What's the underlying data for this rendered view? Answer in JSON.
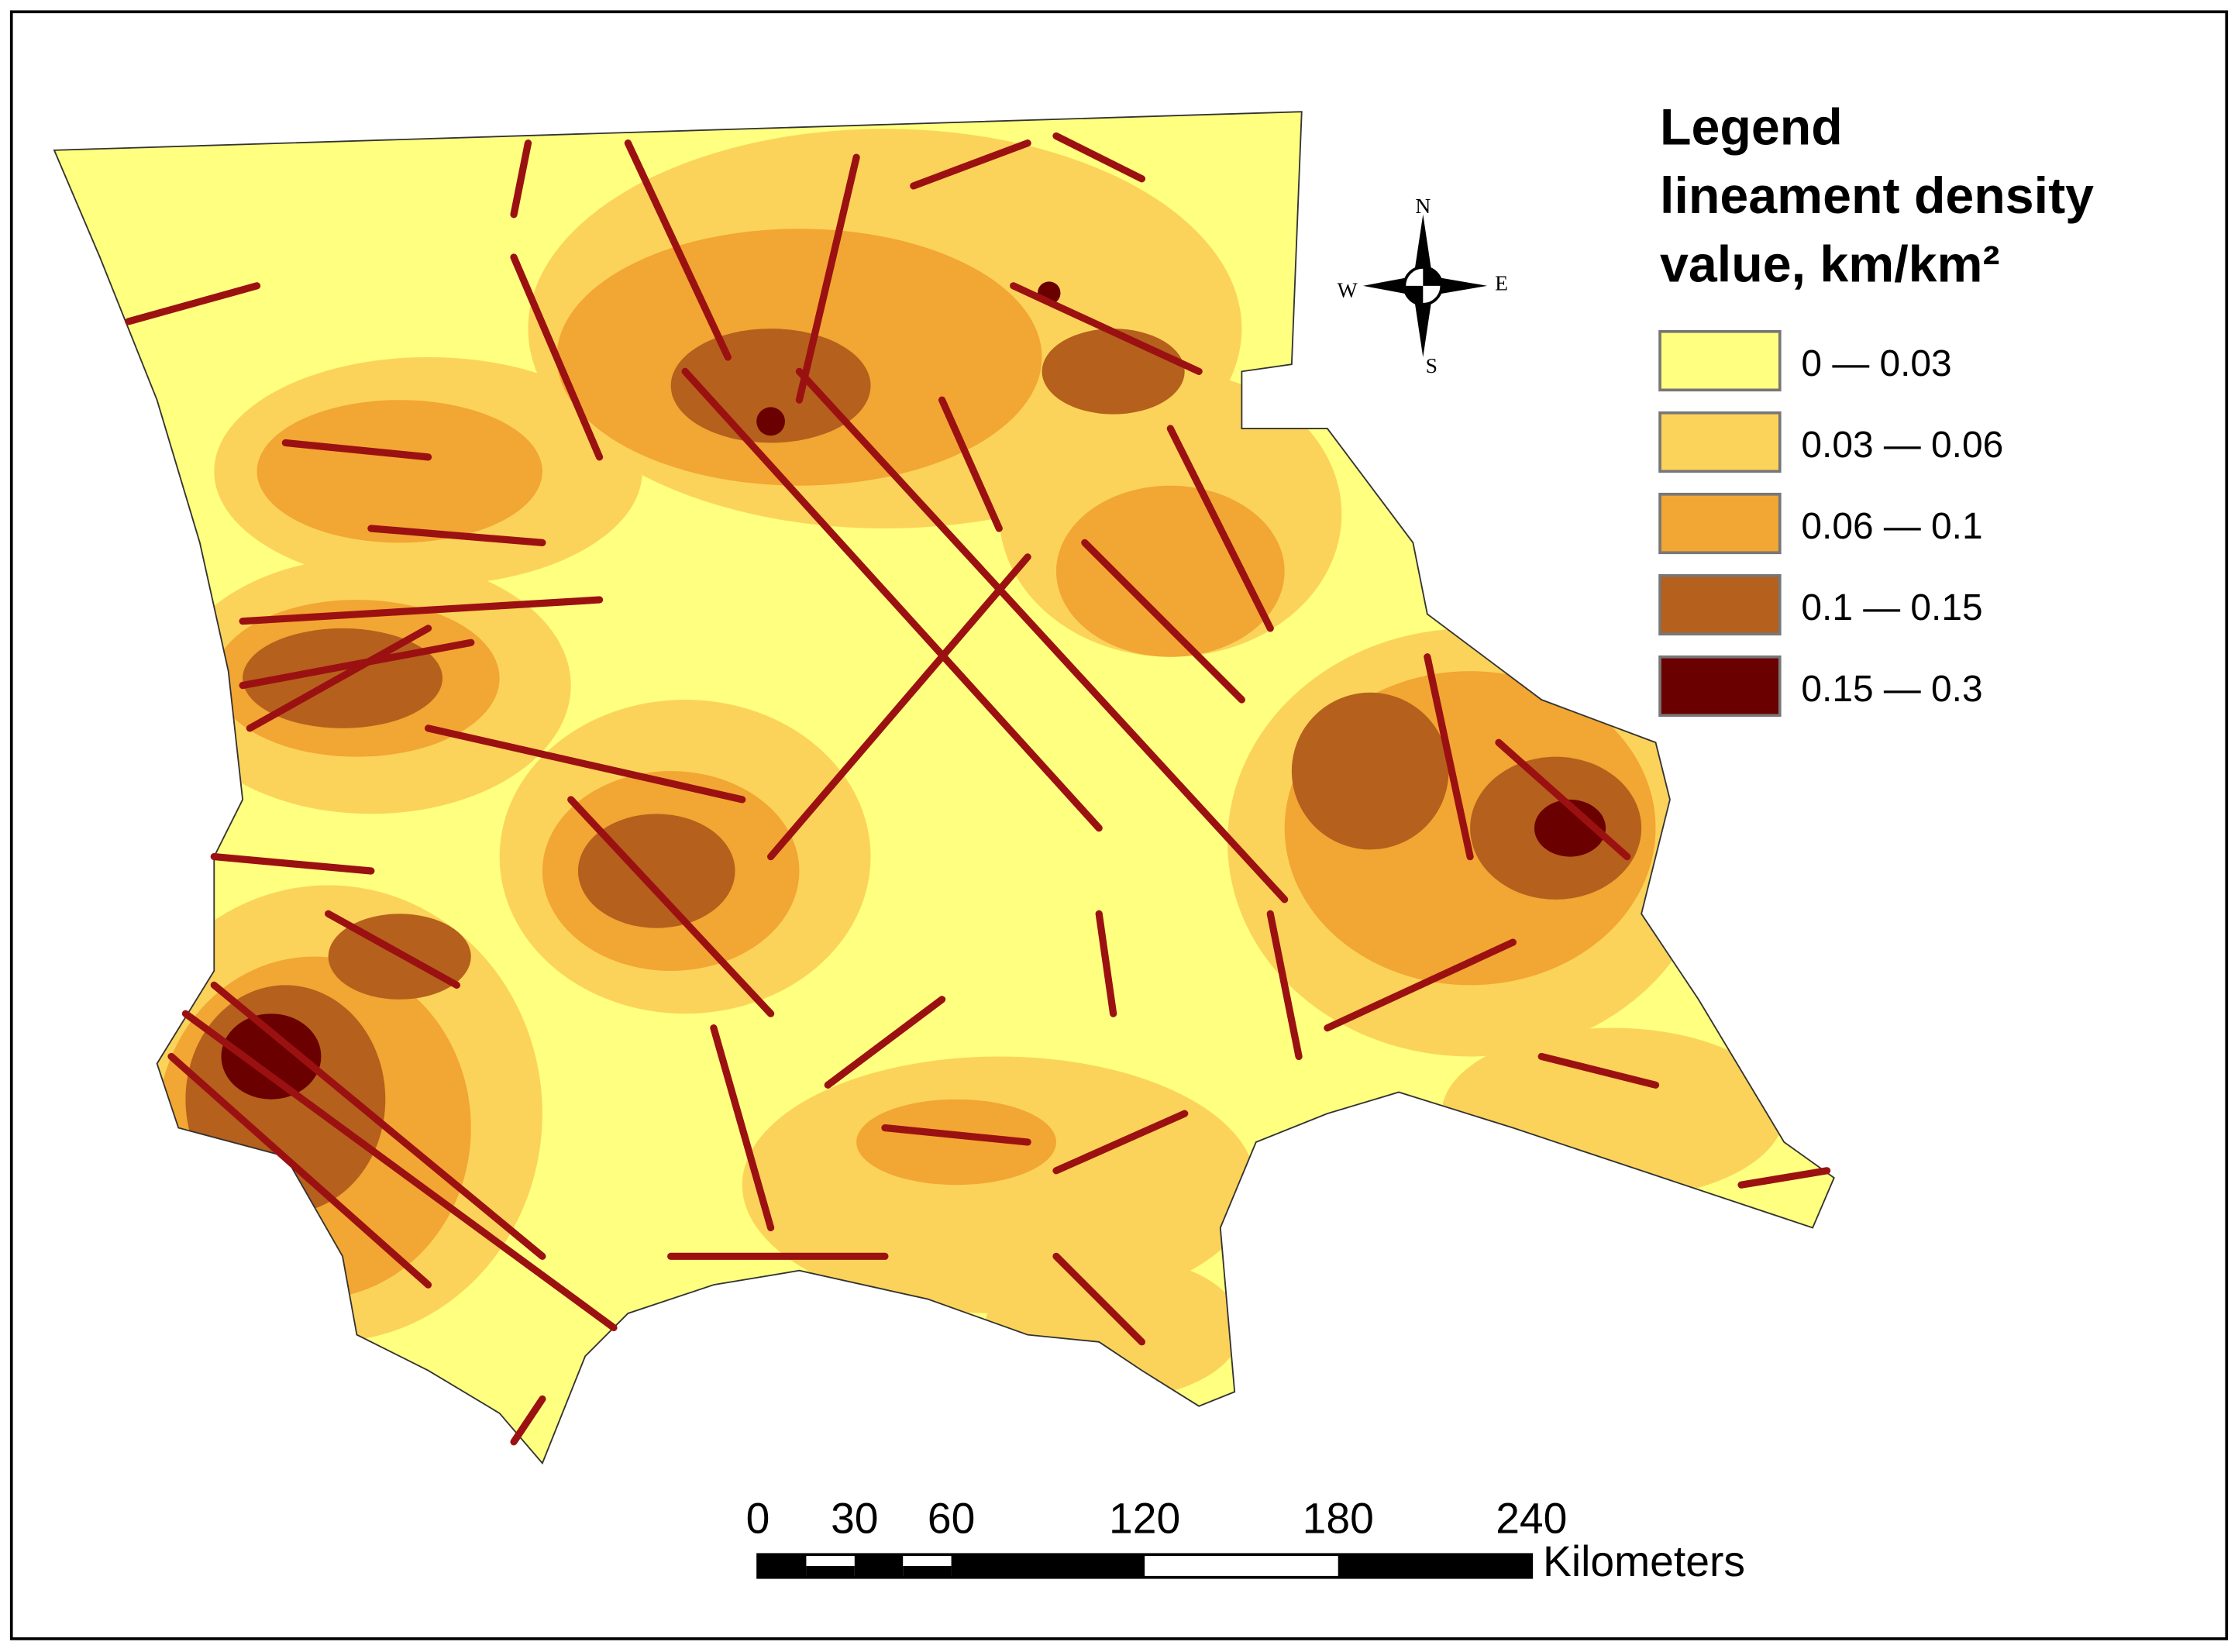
{
  "legend": {
    "title": "Legend",
    "subtitle_line1": "lineament density",
    "subtitle_line2": "value, km/km²",
    "classes": [
      {
        "label": "0 — 0.03",
        "color": "#ffff80"
      },
      {
        "label": "0.03 — 0.06",
        "color": "#fcd35a"
      },
      {
        "label": "0.06 — 0.1",
        "color": "#f2a633"
      },
      {
        "label": "0.1 — 0.15",
        "color": "#b5601d"
      },
      {
        "label": "0.15 — 0.3",
        "color": "#6b0000"
      }
    ]
  },
  "compass": {
    "north": "N",
    "south": "S",
    "east": "E",
    "west": "W"
  },
  "scale_bar": {
    "ticks": [
      0,
      30,
      60,
      120,
      180,
      240
    ],
    "unit": "Kilometers"
  }
}
